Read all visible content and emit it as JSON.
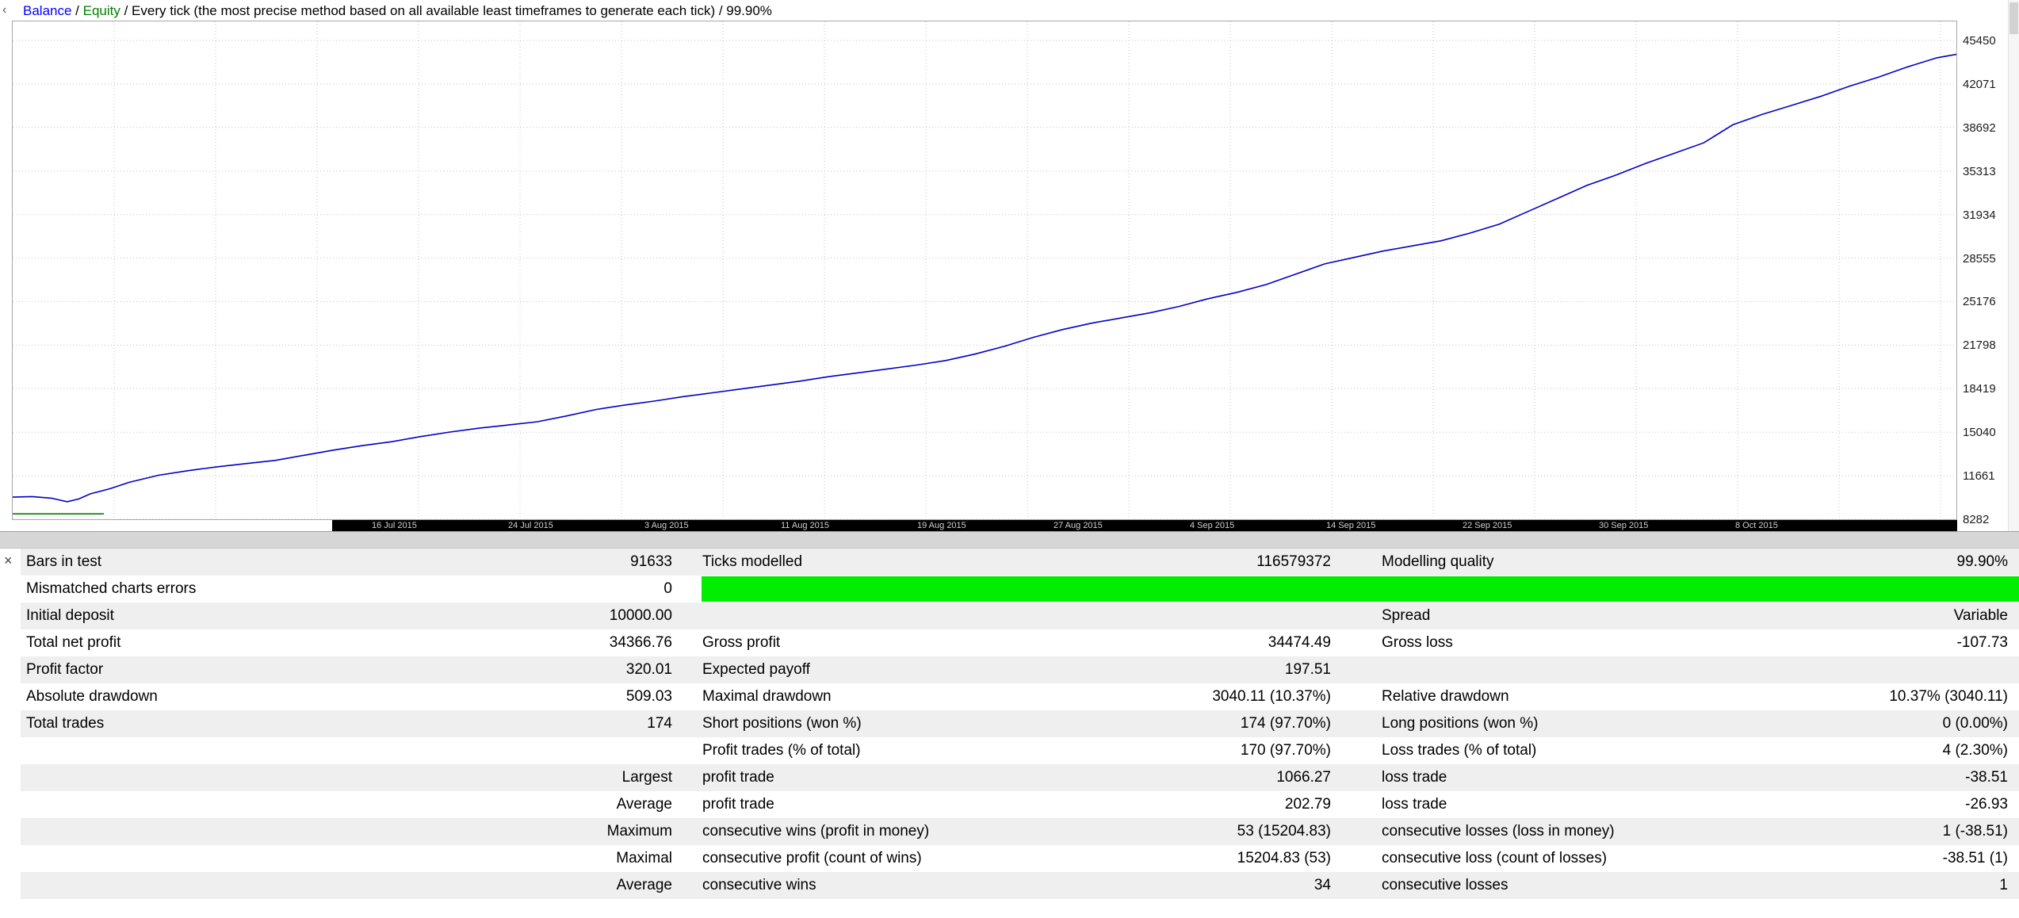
{
  "chart_header": {
    "balance_label": "Balance",
    "separator": " / ",
    "equity_label": "Equity",
    "description": " / Every tick (the most precise method based on all available least timeframes to generate each tick) / 99.90%"
  },
  "controls": {
    "collapse_arrow": "‹",
    "close_button": "×"
  },
  "colors": {
    "balance_text": "#0000ff",
    "equity_text": "#008000",
    "balance_line": "#0000c8",
    "lots_line": "#008000",
    "quality_bar": "#00ef00",
    "grid": "#c3c3c3"
  },
  "chart_data": {
    "type": "line",
    "title": "Balance / Equity curve",
    "ylim": [
      8282,
      45450
    ],
    "y_ticks": [
      45450,
      42071,
      38692,
      35313,
      31934,
      28555,
      25176,
      21798,
      18419,
      15040,
      11661,
      8282
    ],
    "x_labels": [
      "16 Jul 2015",
      "24 Jul 2015",
      "3 Aug 2015",
      "11 Aug 2015",
      "19 Aug 2015",
      "27 Aug 2015",
      "4 Sep 2015",
      "14 Sep 2015",
      "22 Sep 2015",
      "30 Sep 2015",
      "8 Oct 2015"
    ],
    "legend_position": "top-left",
    "grid": "dotted",
    "series": [
      {
        "name": "Lots",
        "points": [
          [
            0,
            8700
          ],
          [
            4.7,
            8700
          ]
        ]
      },
      {
        "name": "Balance",
        "points": [
          [
            0,
            10000
          ],
          [
            1,
            10040
          ],
          [
            2,
            9920
          ],
          [
            2.8,
            9640
          ],
          [
            3.4,
            9860
          ],
          [
            4,
            10260
          ],
          [
            5,
            10650
          ],
          [
            6,
            11150
          ],
          [
            7.5,
            11700
          ],
          [
            9,
            12050
          ],
          [
            10.5,
            12350
          ],
          [
            12,
            12600
          ],
          [
            13.5,
            12850
          ],
          [
            15,
            13250
          ],
          [
            16.5,
            13650
          ],
          [
            18,
            14000
          ],
          [
            19.5,
            14300
          ],
          [
            21,
            14700
          ],
          [
            22.5,
            15050
          ],
          [
            24,
            15350
          ],
          [
            25.5,
            15600
          ],
          [
            27,
            15850
          ],
          [
            28.5,
            16300
          ],
          [
            30,
            16800
          ],
          [
            31.5,
            17150
          ],
          [
            33,
            17450
          ],
          [
            34.5,
            17800
          ],
          [
            36,
            18100
          ],
          [
            37.5,
            18400
          ],
          [
            39,
            18700
          ],
          [
            40.5,
            19000
          ],
          [
            42,
            19350
          ],
          [
            43.5,
            19650
          ],
          [
            45,
            19950
          ],
          [
            46.5,
            20250
          ],
          [
            48,
            20600
          ],
          [
            49.5,
            21100
          ],
          [
            51,
            21700
          ],
          [
            52.5,
            22400
          ],
          [
            54,
            23000
          ],
          [
            55.5,
            23500
          ],
          [
            57,
            23900
          ],
          [
            58.5,
            24300
          ],
          [
            60,
            24800
          ],
          [
            61.5,
            25400
          ],
          [
            63,
            25900
          ],
          [
            64.5,
            26500
          ],
          [
            66,
            27300
          ],
          [
            67.5,
            28100
          ],
          [
            69,
            28600
          ],
          [
            70.5,
            29100
          ],
          [
            72,
            29500
          ],
          [
            73.5,
            29900
          ],
          [
            75,
            30500
          ],
          [
            76.5,
            31200
          ],
          [
            78,
            32200
          ],
          [
            79.5,
            33200
          ],
          [
            81,
            34200
          ],
          [
            82.5,
            35000
          ],
          [
            84,
            35900
          ],
          [
            85.5,
            36700
          ],
          [
            87,
            37500
          ],
          [
            88.5,
            38900
          ],
          [
            90,
            39700
          ],
          [
            91.5,
            40400
          ],
          [
            93,
            41100
          ],
          [
            94.5,
            41900
          ],
          [
            96,
            42600
          ],
          [
            97.5,
            43400
          ],
          [
            99,
            44100
          ],
          [
            100,
            44367
          ]
        ]
      }
    ]
  },
  "report": {
    "rows": [
      {
        "cells": [
          "Bars in test",
          "91633",
          "Ticks modelled",
          "116579372",
          "Modelling quality",
          "99.90%"
        ],
        "green_bar": false
      },
      {
        "cells": [
          "Mismatched charts errors",
          "0",
          "",
          "",
          "",
          ""
        ],
        "green_bar": true
      },
      {
        "cells": [
          "Initial deposit",
          "10000.00",
          "",
          "",
          "Spread",
          "Variable"
        ],
        "green_bar": false
      },
      {
        "cells": [
          "Total net profit",
          "34366.76",
          "Gross profit",
          "34474.49",
          "Gross loss",
          "-107.73"
        ],
        "green_bar": false
      },
      {
        "cells": [
          "Profit factor",
          "320.01",
          "Expected payoff",
          "197.51",
          "",
          ""
        ],
        "green_bar": false
      },
      {
        "cells": [
          "Absolute drawdown",
          "509.03",
          "Maximal drawdown",
          "3040.11 (10.37%)",
          "Relative drawdown",
          "10.37% (3040.11)"
        ],
        "green_bar": false
      },
      {
        "cells": [
          "Total trades",
          "174",
          "Short positions (won %)",
          "174 (97.70%)",
          "Long positions (won %)",
          "0 (0.00%)"
        ],
        "green_bar": false
      },
      {
        "cells": [
          "",
          "",
          "Profit trades (% of total)",
          "170 (97.70%)",
          "Loss trades (% of total)",
          "4 (2.30%)"
        ],
        "green_bar": false
      },
      {
        "cells": [
          "",
          "Largest",
          "profit trade",
          "1066.27",
          "loss trade",
          "-38.51"
        ],
        "green_bar": false
      },
      {
        "cells": [
          "",
          "Average",
          "profit trade",
          "202.79",
          "loss trade",
          "-26.93"
        ],
        "green_bar": false
      },
      {
        "cells": [
          "",
          "Maximum",
          "consecutive wins (profit in money)",
          "53 (15204.83)",
          "consecutive losses (loss in money)",
          "1 (-38.51)"
        ],
        "green_bar": false
      },
      {
        "cells": [
          "",
          "Maximal",
          "consecutive profit (count of wins)",
          "15204.83 (53)",
          "consecutive loss (count of losses)",
          "-38.51 (1)"
        ],
        "green_bar": false
      },
      {
        "cells": [
          "",
          "Average",
          "consecutive wins",
          "34",
          "consecutive losses",
          "1"
        ],
        "green_bar": false
      }
    ]
  }
}
